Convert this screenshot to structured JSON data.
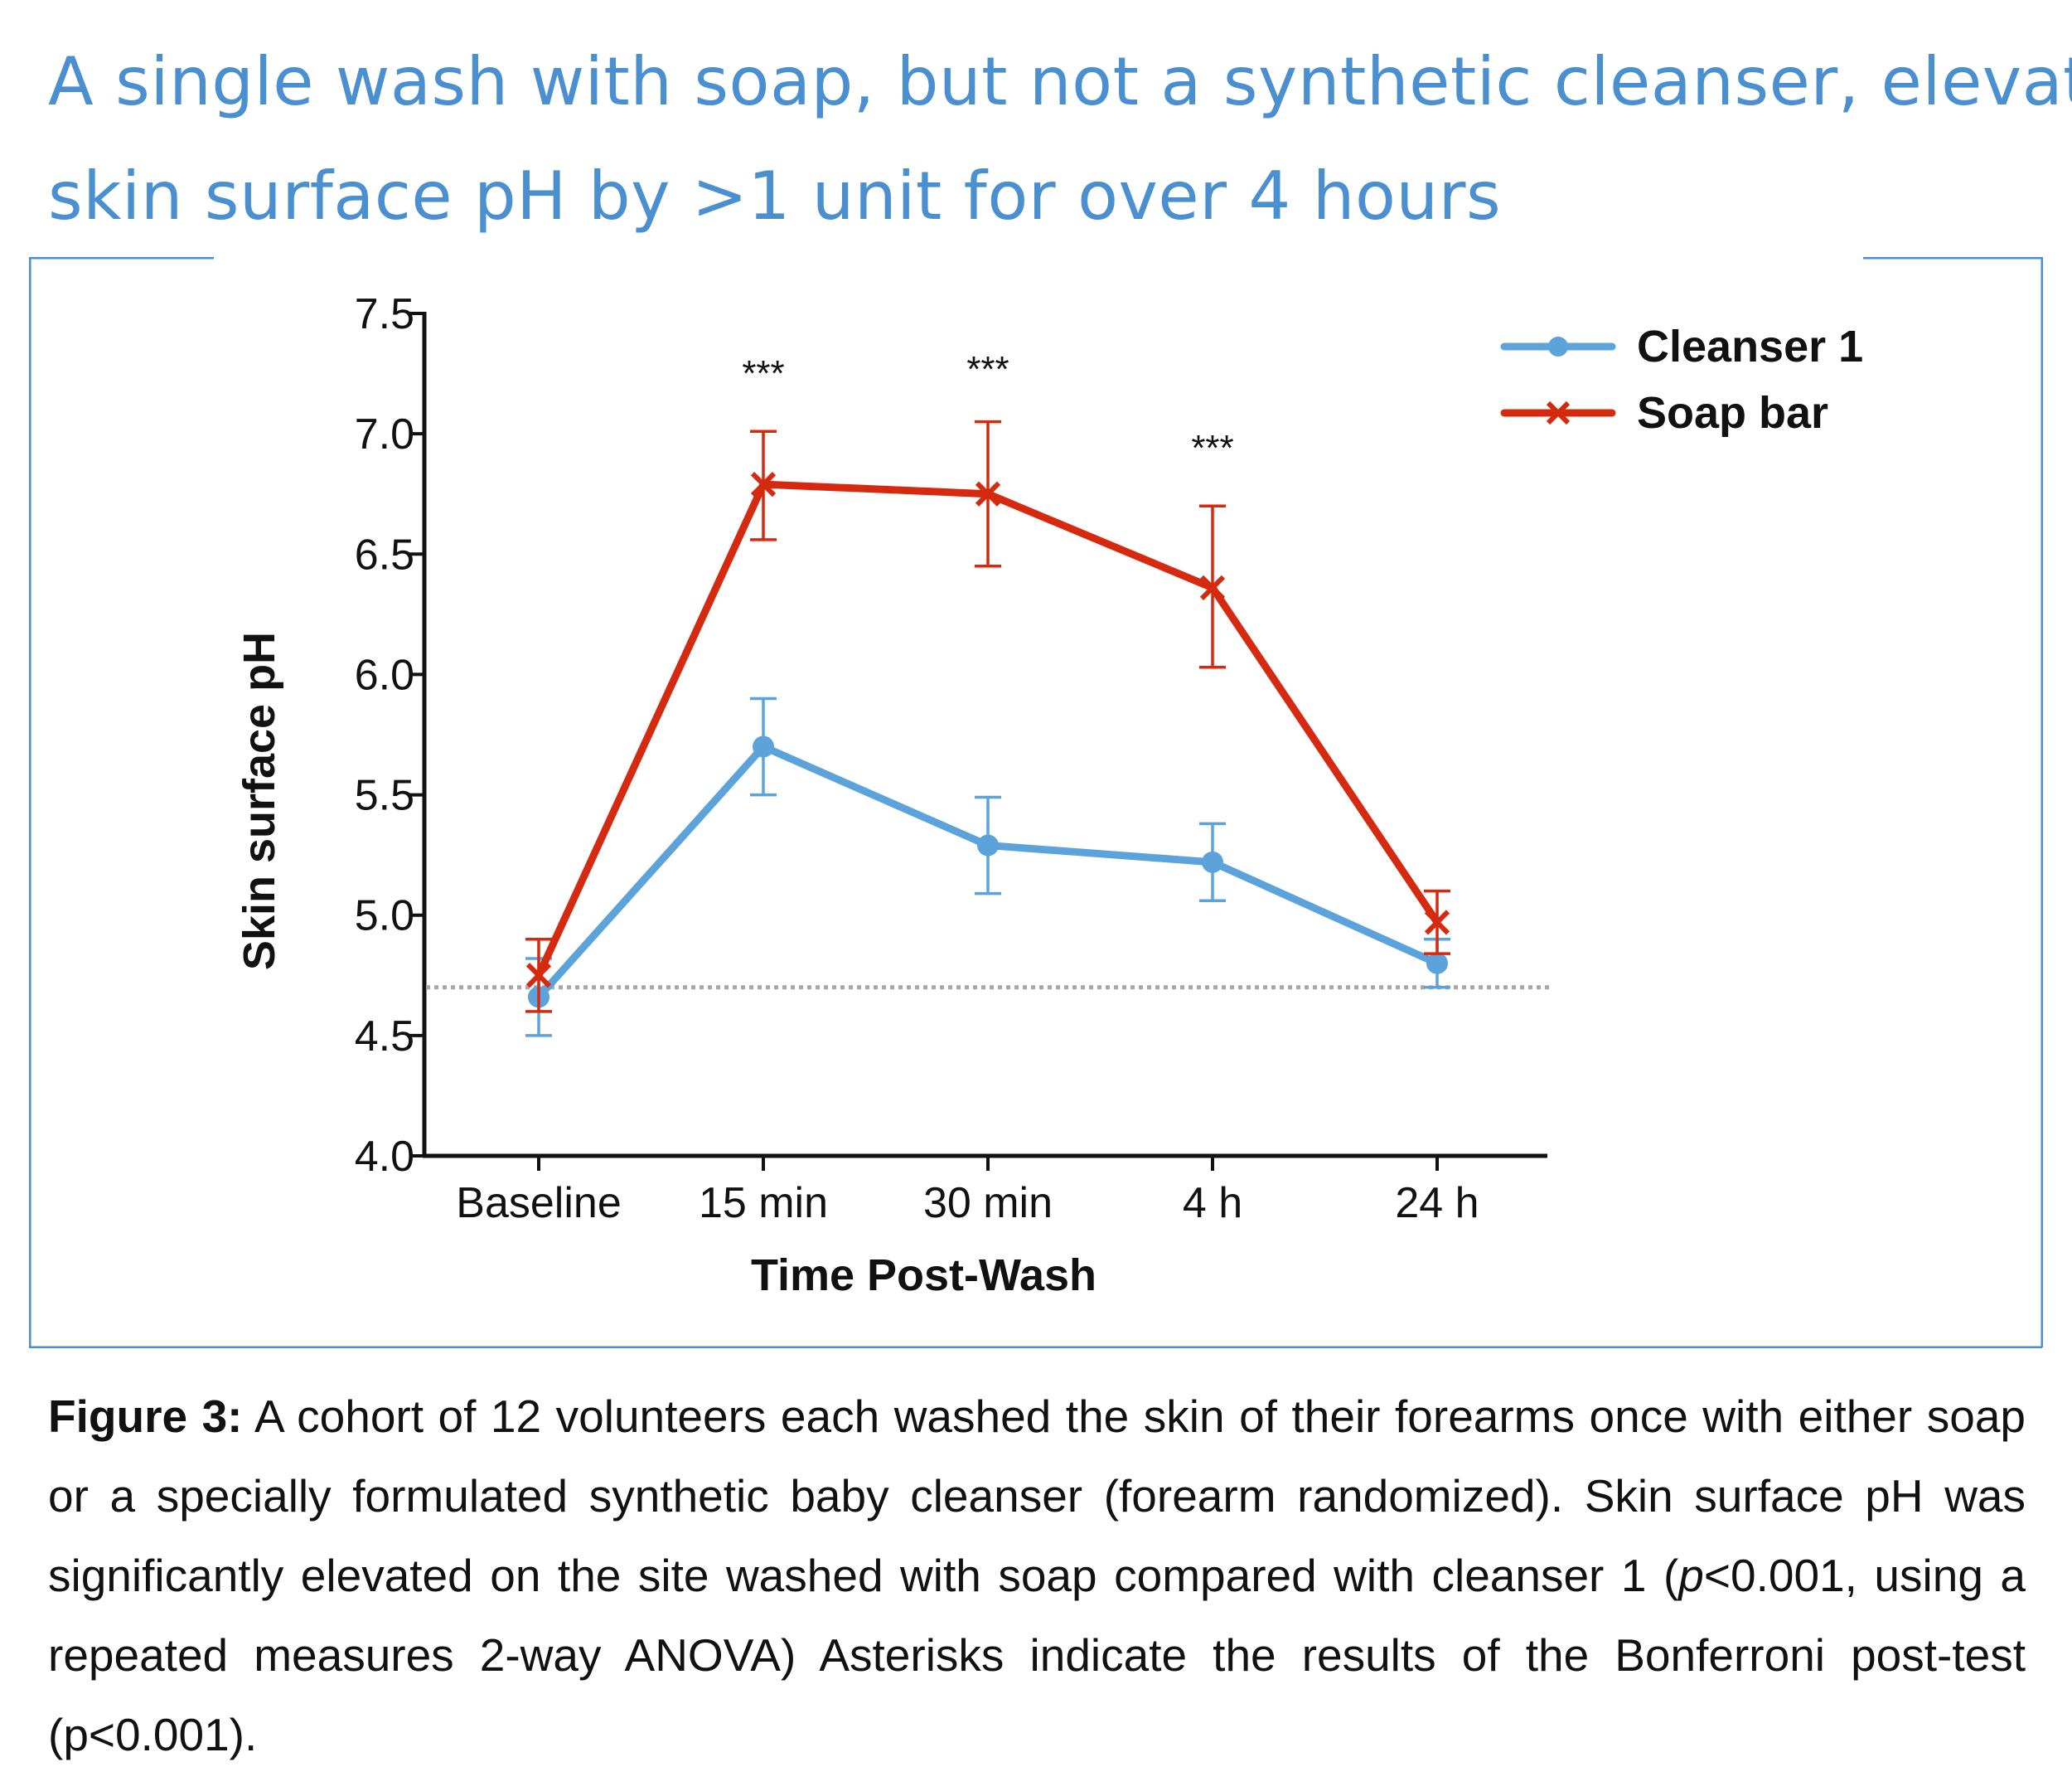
{
  "title": {
    "line1": "A single wash with soap, but not a synthetic cleanser, elevated",
    "line2": "skin surface pH by >1 unit for over 4 hours"
  },
  "colors": {
    "title": "#4a8fd0",
    "frame": "#4a8fd0",
    "cleanser": "#5ba3da",
    "soap": "#d62a10",
    "reference_line": "#a8a8a8"
  },
  "chart_data": {
    "type": "line",
    "categories": [
      "Baseline",
      "15 min",
      "30 min",
      "4 h",
      "24 h"
    ],
    "xlabel": "Time Post-Wash",
    "ylabel": "Skin surface pH",
    "ylim": [
      4.0,
      7.5
    ],
    "yticks": [
      4.0,
      4.5,
      5.0,
      5.5,
      6.0,
      6.5,
      7.0,
      7.5
    ],
    "ytick_labels": [
      "4.0",
      "4.5",
      "5.0",
      "5.5",
      "6.0",
      "6.5",
      "7.0",
      "7.5"
    ],
    "reference_line": 4.7,
    "grid": false,
    "legend_position": "top-right",
    "series": [
      {
        "name": "Cleanser 1",
        "marker": "circle",
        "values": [
          4.66,
          5.7,
          5.29,
          5.22,
          4.8
        ],
        "error_low": [
          4.5,
          5.5,
          5.09,
          5.06,
          4.7
        ],
        "error_high": [
          4.82,
          5.9,
          5.49,
          5.38,
          4.9
        ]
      },
      {
        "name": "Soap bar",
        "marker": "x",
        "values": [
          4.75,
          6.79,
          6.75,
          6.36,
          4.97
        ],
        "error_low": [
          4.6,
          6.56,
          6.45,
          6.03,
          4.84
        ],
        "error_high": [
          4.9,
          7.01,
          7.05,
          6.7,
          5.1
        ]
      }
    ],
    "annotations": [
      {
        "category": "15 min",
        "text": "***"
      },
      {
        "category": "30 min",
        "text": "***"
      },
      {
        "category": "4 h",
        "text": "***"
      }
    ]
  },
  "caption": {
    "label": "Figure 3:",
    "text_1": " A cohort of 12 volunteers each washed the skin of their forearms once with either soap or a specially formulated synthetic baby cleanser (forearm randomized). Skin surface pH was significantly elevated on the site washed with soap compared with cleanser 1 (",
    "p_italic": "p",
    "text_2": "<0.001, using a repeated measures 2-way ANOVA) Asterisks indicate the results of the Bonferroni post-test (p<0.001)."
  }
}
